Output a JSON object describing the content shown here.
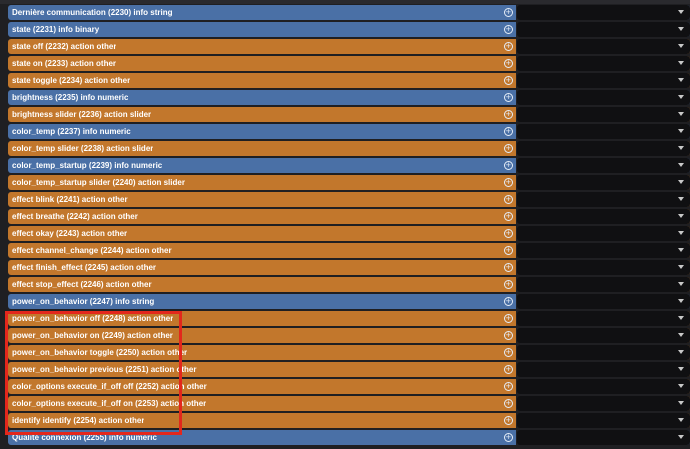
{
  "commands": [
    {
      "label": "Dernière communication (2230) info string",
      "kind": "info"
    },
    {
      "label": "state (2231) info binary",
      "kind": "info"
    },
    {
      "label": "state off (2232) action other",
      "kind": "action"
    },
    {
      "label": "state on (2233) action other",
      "kind": "action"
    },
    {
      "label": "state toggle (2234) action other",
      "kind": "action"
    },
    {
      "label": "brightness (2235) info numeric",
      "kind": "info"
    },
    {
      "label": "brightness slider (2236) action slider",
      "kind": "action"
    },
    {
      "label": "color_temp (2237) info numeric",
      "kind": "info"
    },
    {
      "label": "color_temp slider (2238) action slider",
      "kind": "action"
    },
    {
      "label": "color_temp_startup (2239) info numeric",
      "kind": "info"
    },
    {
      "label": "color_temp_startup slider (2240) action slider",
      "kind": "action"
    },
    {
      "label": "effect blink (2241) action other",
      "kind": "action"
    },
    {
      "label": "effect breathe (2242) action other",
      "kind": "action"
    },
    {
      "label": "effect okay (2243) action other",
      "kind": "action"
    },
    {
      "label": "effect channel_change (2244) action other",
      "kind": "action"
    },
    {
      "label": "effect finish_effect (2245) action other",
      "kind": "action"
    },
    {
      "label": "effect stop_effect (2246) action other",
      "kind": "action"
    },
    {
      "label": "power_on_behavior (2247) info string",
      "kind": "info"
    },
    {
      "label": "power_on_behavior off (2248) action other",
      "kind": "action"
    },
    {
      "label": "power_on_behavior on (2249) action other",
      "kind": "action"
    },
    {
      "label": "power_on_behavior toggle (2250) action other",
      "kind": "action"
    },
    {
      "label": "power_on_behavior previous (2251) action other",
      "kind": "action"
    },
    {
      "label": "color_options execute_if_off off (2252) action other",
      "kind": "action"
    },
    {
      "label": "color_options execute_if_off on (2253) action other",
      "kind": "action"
    },
    {
      "label": "identify identify (2254) action other",
      "kind": "action"
    },
    {
      "label": "Qualité connexion (2255) info numeric",
      "kind": "info"
    }
  ],
  "icons": {
    "add": "plus-circle-icon",
    "dropdown": "chevron-down-icon"
  },
  "colors": {
    "info": "#4a70a6",
    "action": "#c2772c",
    "select_bg": "#101012",
    "highlight": "#e3271c"
  }
}
